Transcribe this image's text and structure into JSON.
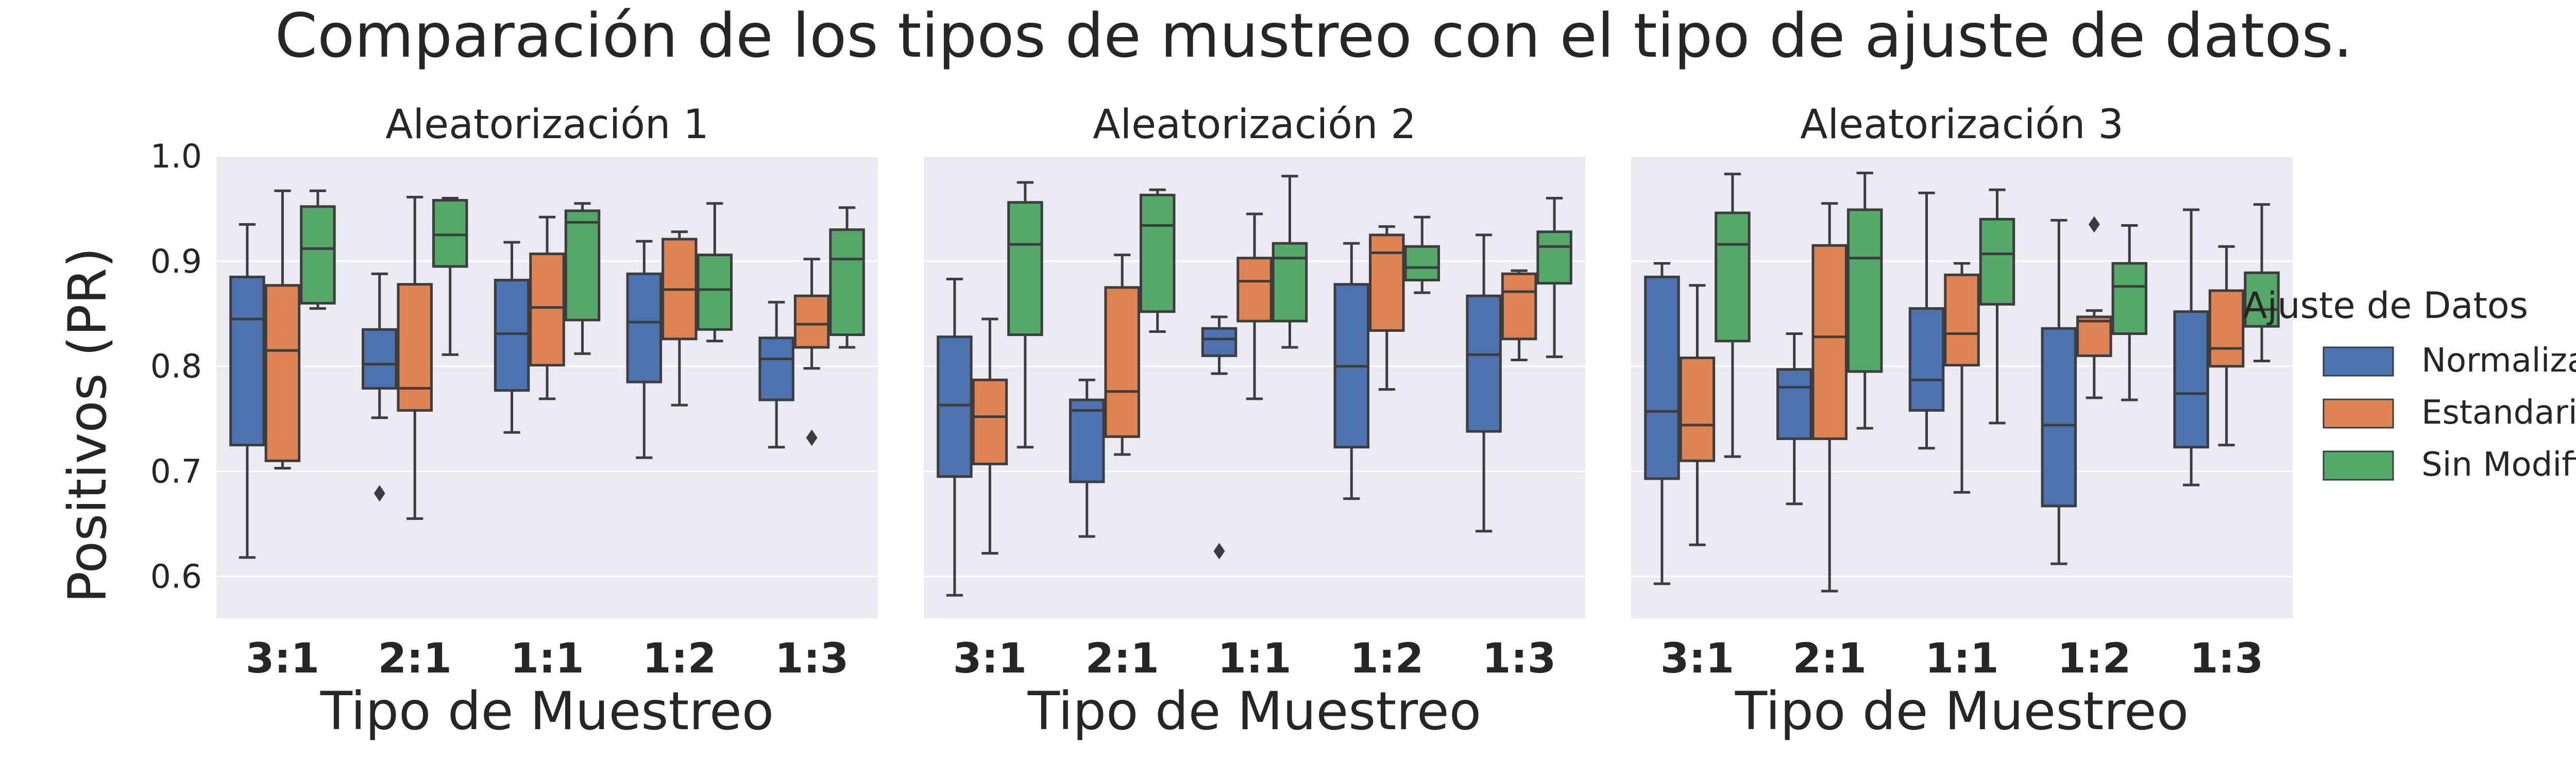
{
  "chart_data": {
    "type": "boxplot",
    "title": "Comparación de los tipos de mustreo con el tipo de ajuste de datos.",
    "ylabel": "Positivos (PR)",
    "xlabel": "Tipo de Muestreo",
    "ylim": [
      0.56,
      1.0
    ],
    "yticks": [
      0.6,
      0.7,
      0.8,
      0.9,
      1.0
    ],
    "grid": true,
    "legend": {
      "title": "Ajuste de Datos",
      "placement": "right",
      "entries": [
        "Normalizados",
        "Estandarizados",
        "Sin Modificación"
      ]
    },
    "colors": {
      "Normalizados": "#4c72b0",
      "Estandarizados": "#dd8452",
      "Sin Modificación": "#55a868",
      "background": "#eaeaf2",
      "grid": "#ffffff",
      "line": "#3d3d3d"
    },
    "categories": [
      "3:1",
      "2:1",
      "1:1",
      "1:2",
      "1:3"
    ],
    "panels": [
      {
        "title": "Aleatorización 1",
        "boxes": [
          [
            {
              "min": 0.618,
              "q1": 0.725,
              "median": 0.845,
              "q3": 0.885,
              "max": 0.935,
              "outliers": []
            },
            {
              "min": 0.703,
              "q1": 0.71,
              "median": 0.815,
              "q3": 0.877,
              "max": 0.967,
              "outliers": []
            },
            {
              "min": 0.855,
              "q1": 0.86,
              "median": 0.912,
              "q3": 0.952,
              "max": 0.967,
              "outliers": []
            }
          ],
          [
            {
              "min": 0.751,
              "q1": 0.779,
              "median": 0.802,
              "q3": 0.835,
              "max": 0.888,
              "outliers": [
                0.679
              ]
            },
            {
              "min": 0.655,
              "q1": 0.758,
              "median": 0.779,
              "q3": 0.878,
              "max": 0.961,
              "outliers": []
            },
            {
              "min": 0.811,
              "q1": 0.895,
              "median": 0.925,
              "q3": 0.958,
              "max": 0.96,
              "outliers": []
            }
          ],
          [
            {
              "min": 0.737,
              "q1": 0.777,
              "median": 0.831,
              "q3": 0.882,
              "max": 0.918,
              "outliers": []
            },
            {
              "min": 0.769,
              "q1": 0.801,
              "median": 0.856,
              "q3": 0.907,
              "max": 0.942,
              "outliers": []
            },
            {
              "min": 0.812,
              "q1": 0.844,
              "median": 0.937,
              "q3": 0.948,
              "max": 0.955,
              "outliers": []
            }
          ],
          [
            {
              "min": 0.713,
              "q1": 0.785,
              "median": 0.842,
              "q3": 0.888,
              "max": 0.919,
              "outliers": []
            },
            {
              "min": 0.763,
              "q1": 0.826,
              "median": 0.873,
              "q3": 0.921,
              "max": 0.928,
              "outliers": []
            },
            {
              "min": 0.824,
              "q1": 0.835,
              "median": 0.873,
              "q3": 0.906,
              "max": 0.955,
              "outliers": []
            }
          ],
          [
            {
              "min": 0.723,
              "q1": 0.768,
              "median": 0.807,
              "q3": 0.827,
              "max": 0.861,
              "outliers": []
            },
            {
              "min": 0.798,
              "q1": 0.818,
              "median": 0.84,
              "q3": 0.867,
              "max": 0.902,
              "outliers": [
                0.732
              ]
            },
            {
              "min": 0.818,
              "q1": 0.83,
              "median": 0.902,
              "q3": 0.93,
              "max": 0.951,
              "outliers": []
            }
          ]
        ]
      },
      {
        "title": "Aleatorización 2",
        "boxes": [
          [
            {
              "min": 0.582,
              "q1": 0.695,
              "median": 0.763,
              "q3": 0.828,
              "max": 0.883,
              "outliers": []
            },
            {
              "min": 0.622,
              "q1": 0.707,
              "median": 0.752,
              "q3": 0.787,
              "max": 0.845,
              "outliers": []
            },
            {
              "min": 0.723,
              "q1": 0.83,
              "median": 0.916,
              "q3": 0.956,
              "max": 0.975,
              "outliers": []
            }
          ],
          [
            {
              "min": 0.638,
              "q1": 0.69,
              "median": 0.758,
              "q3": 0.768,
              "max": 0.787,
              "outliers": []
            },
            {
              "min": 0.716,
              "q1": 0.733,
              "median": 0.776,
              "q3": 0.875,
              "max": 0.906,
              "outliers": []
            },
            {
              "min": 0.833,
              "q1": 0.852,
              "median": 0.934,
              "q3": 0.963,
              "max": 0.968,
              "outliers": []
            }
          ],
          [
            {
              "min": 0.793,
              "q1": 0.81,
              "median": 0.826,
              "q3": 0.836,
              "max": 0.847,
              "outliers": [
                0.624
              ]
            },
            {
              "min": 0.769,
              "q1": 0.843,
              "median": 0.881,
              "q3": 0.903,
              "max": 0.945,
              "outliers": []
            },
            {
              "min": 0.818,
              "q1": 0.843,
              "median": 0.903,
              "q3": 0.917,
              "max": 0.981,
              "outliers": []
            }
          ],
          [
            {
              "min": 0.674,
              "q1": 0.723,
              "median": 0.8,
              "q3": 0.878,
              "max": 0.917,
              "outliers": []
            },
            {
              "min": 0.778,
              "q1": 0.834,
              "median": 0.908,
              "q3": 0.925,
              "max": 0.933,
              "outliers": []
            },
            {
              "min": 0.87,
              "q1": 0.882,
              "median": 0.894,
              "q3": 0.914,
              "max": 0.942,
              "outliers": []
            }
          ],
          [
            {
              "min": 0.643,
              "q1": 0.738,
              "median": 0.811,
              "q3": 0.867,
              "max": 0.925,
              "outliers": []
            },
            {
              "min": 0.806,
              "q1": 0.826,
              "median": 0.871,
              "q3": 0.888,
              "max": 0.891,
              "outliers": []
            },
            {
              "min": 0.809,
              "q1": 0.879,
              "median": 0.914,
              "q3": 0.928,
              "max": 0.96,
              "outliers": []
            }
          ]
        ]
      },
      {
        "title": "Aleatorización 3",
        "boxes": [
          [
            {
              "min": 0.593,
              "q1": 0.693,
              "median": 0.757,
              "q3": 0.885,
              "max": 0.898,
              "outliers": []
            },
            {
              "min": 0.63,
              "q1": 0.71,
              "median": 0.744,
              "q3": 0.808,
              "max": 0.877,
              "outliers": []
            },
            {
              "min": 0.714,
              "q1": 0.824,
              "median": 0.916,
              "q3": 0.946,
              "max": 0.983,
              "outliers": []
            }
          ],
          [
            {
              "min": 0.669,
              "q1": 0.731,
              "median": 0.78,
              "q3": 0.797,
              "max": 0.831,
              "outliers": []
            },
            {
              "min": 0.586,
              "q1": 0.731,
              "median": 0.828,
              "q3": 0.915,
              "max": 0.955,
              "outliers": []
            },
            {
              "min": 0.741,
              "q1": 0.795,
              "median": 0.903,
              "q3": 0.949,
              "max": 0.984,
              "outliers": []
            }
          ],
          [
            {
              "min": 0.722,
              "q1": 0.758,
              "median": 0.787,
              "q3": 0.855,
              "max": 0.965,
              "outliers": []
            },
            {
              "min": 0.68,
              "q1": 0.801,
              "median": 0.831,
              "q3": 0.887,
              "max": 0.898,
              "outliers": []
            },
            {
              "min": 0.746,
              "q1": 0.859,
              "median": 0.907,
              "q3": 0.94,
              "max": 0.968,
              "outliers": []
            }
          ],
          [
            {
              "min": 0.612,
              "q1": 0.667,
              "median": 0.744,
              "q3": 0.836,
              "max": 0.939,
              "outliers": []
            },
            {
              "min": 0.77,
              "q1": 0.81,
              "median": 0.843,
              "q3": 0.847,
              "max": 0.853,
              "outliers": [
                0.935
              ]
            },
            {
              "min": 0.768,
              "q1": 0.831,
              "median": 0.876,
              "q3": 0.898,
              "max": 0.934,
              "outliers": []
            }
          ],
          [
            {
              "min": 0.687,
              "q1": 0.723,
              "median": 0.774,
              "q3": 0.852,
              "max": 0.949,
              "outliers": []
            },
            {
              "min": 0.725,
              "q1": 0.8,
              "median": 0.817,
              "q3": 0.872,
              "max": 0.914,
              "outliers": []
            },
            {
              "min": 0.805,
              "q1": 0.838,
              "median": 0.854,
              "q3": 0.889,
              "max": 0.954,
              "outliers": []
            }
          ]
        ]
      }
    ]
  }
}
